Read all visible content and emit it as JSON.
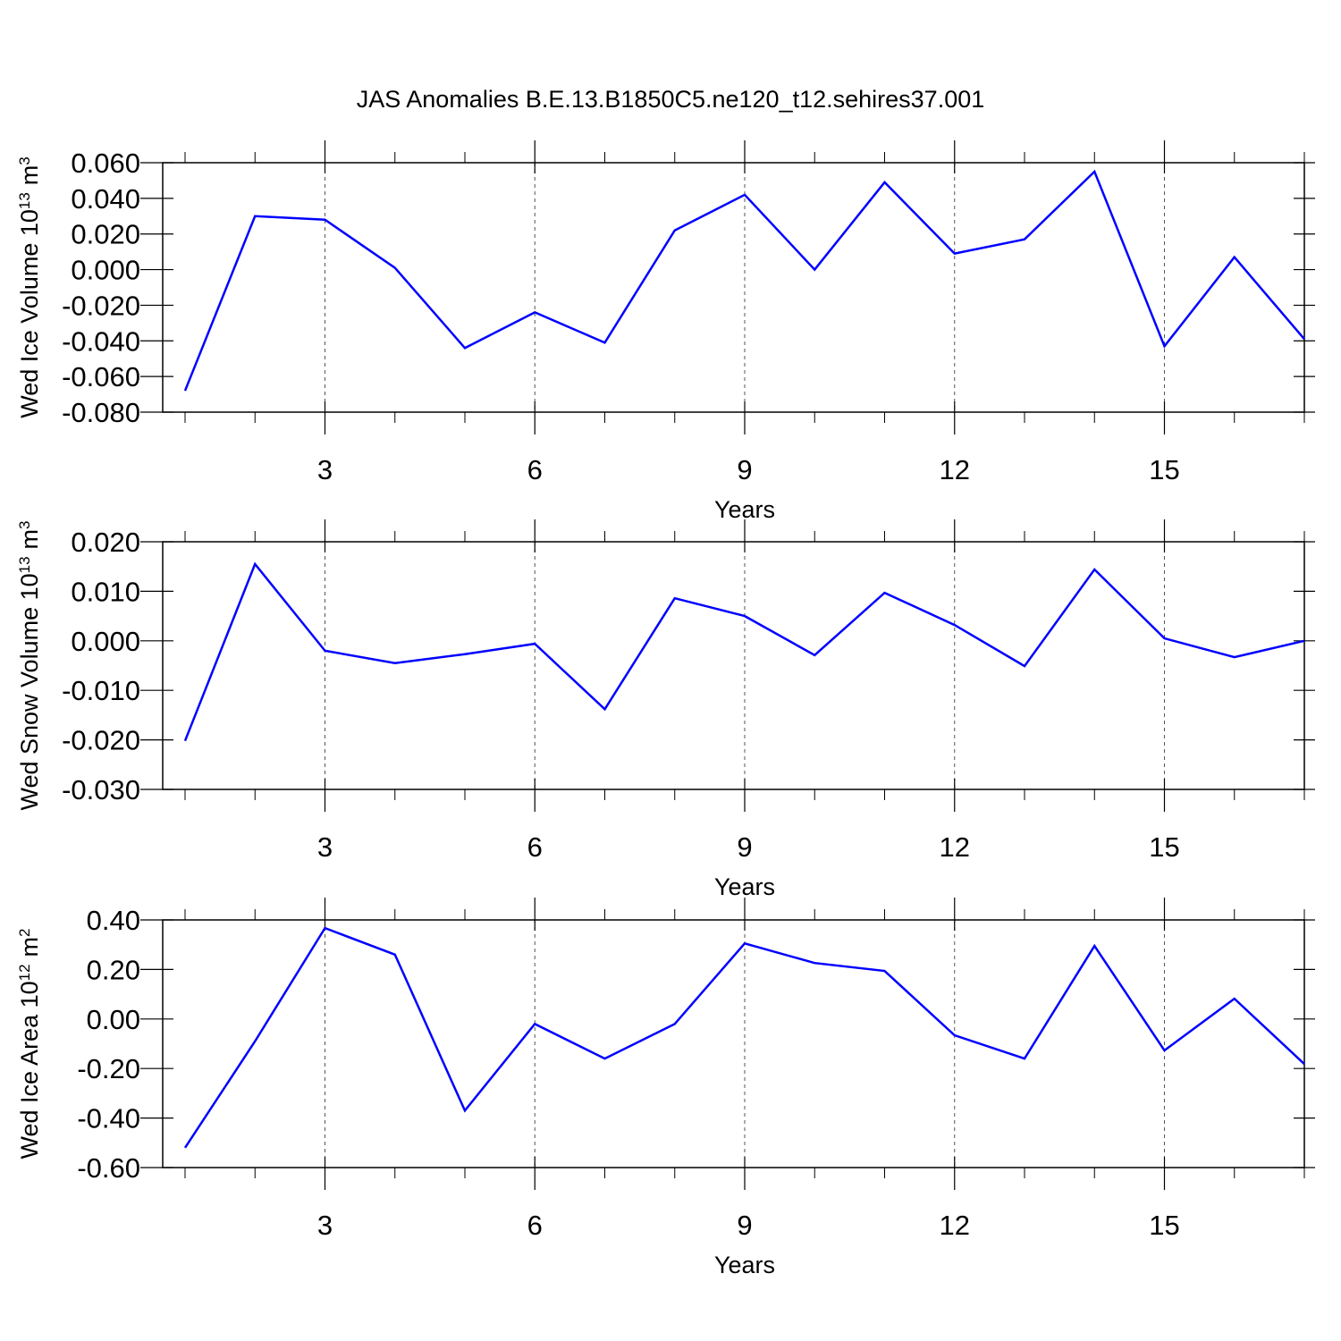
{
  "title": "JAS Anomalies B.E.13.B1850C5.ne120_t12.sehires37.001",
  "chart_data": [
    {
      "type": "line",
      "ylabel": [
        "Wed Ice Volume 10",
        "13",
        "m",
        "3"
      ],
      "xlabel": "Years",
      "x": [
        1,
        2,
        3,
        4,
        5,
        6,
        7,
        8,
        9,
        10,
        11,
        12,
        13,
        14,
        15,
        16,
        17
      ],
      "series": [
        {
          "color": "#0000ff",
          "values": [
            -0.068,
            0.03,
            0.028,
            0.001,
            -0.044,
            -0.024,
            -0.041,
            0.022,
            0.042,
            0.0,
            0.049,
            0.009,
            0.017,
            0.055,
            -0.043,
            0.007,
            -0.039
          ]
        }
      ],
      "xlim": [
        1,
        17
      ],
      "xticks": [
        3,
        6,
        9,
        12,
        15
      ],
      "xminorticks": [
        1,
        2,
        4,
        5,
        7,
        8,
        10,
        11,
        13,
        14,
        16,
        17
      ],
      "ylim": [
        -0.08,
        0.06
      ],
      "yticks": [
        {
          "value": -0.08,
          "label": "-0.080"
        },
        {
          "value": -0.06,
          "label": "-0.060"
        },
        {
          "value": -0.04,
          "label": "-0.040"
        },
        {
          "value": -0.02,
          "label": "-0.020"
        },
        {
          "value": 0,
          "label": "0.000"
        },
        {
          "value": 0.02,
          "label": "0.020"
        },
        {
          "value": 0.04,
          "label": "0.040"
        },
        {
          "value": 0.06,
          "label": "0.060"
        }
      ],
      "grid": "x"
    },
    {
      "type": "line",
      "ylabel": [
        "Wed Snow Volume 10",
        "13",
        "m",
        "3"
      ],
      "xlabel": "Years",
      "x": [
        1,
        2,
        3,
        4,
        5,
        6,
        7,
        8,
        9,
        10,
        11,
        12,
        13,
        14,
        15,
        16,
        17
      ],
      "series": [
        {
          "color": "#0000ff",
          "values": [
            -0.0202,
            0.0155,
            -0.002,
            -0.0045,
            -0.0027,
            -0.0006,
            -0.0138,
            0.0086,
            0.005,
            -0.0029,
            0.0097,
            0.0032,
            -0.0051,
            0.0144,
            0.0005,
            -0.0033,
            0.0
          ]
        }
      ],
      "xlim": [
        1,
        17
      ],
      "xticks": [
        3,
        6,
        9,
        12,
        15
      ],
      "xminorticks": [
        1,
        2,
        4,
        5,
        7,
        8,
        10,
        11,
        13,
        14,
        16,
        17
      ],
      "ylim": [
        -0.03,
        0.02
      ],
      "yticks": [
        {
          "value": -0.03,
          "label": "-0.030"
        },
        {
          "value": -0.02,
          "label": "-0.020"
        },
        {
          "value": -0.01,
          "label": "-0.010"
        },
        {
          "value": 0,
          "label": "0.000"
        },
        {
          "value": 0.01,
          "label": "0.010"
        },
        {
          "value": 0.02,
          "label": "0.020"
        }
      ],
      "grid": "x"
    },
    {
      "type": "line",
      "ylabel": [
        "Wed Ice Area 10",
        "12",
        "m",
        "2"
      ],
      "xlabel": "Years",
      "x": [
        1,
        2,
        3,
        4,
        5,
        6,
        7,
        8,
        9,
        10,
        11,
        12,
        13,
        14,
        15,
        16,
        17
      ],
      "series": [
        {
          "color": "#0000ff",
          "values": [
            -0.52,
            -0.09,
            0.367,
            0.26,
            -0.37,
            -0.02,
            -0.16,
            -0.02,
            0.305,
            0.226,
            0.194,
            -0.066,
            -0.16,
            0.295,
            -0.127,
            0.082,
            -0.182
          ]
        }
      ],
      "xlim": [
        1,
        17
      ],
      "xticks": [
        3,
        6,
        9,
        12,
        15
      ],
      "xminorticks": [
        1,
        2,
        4,
        5,
        7,
        8,
        10,
        11,
        13,
        14,
        16,
        17
      ],
      "ylim": [
        -0.6,
        0.4
      ],
      "yticks": [
        {
          "value": -0.6,
          "label": "-0.60"
        },
        {
          "value": -0.4,
          "label": "-0.40"
        },
        {
          "value": -0.2,
          "label": "-0.20"
        },
        {
          "value": 0,
          "label": "0.00"
        },
        {
          "value": 0.2,
          "label": "0.20"
        },
        {
          "value": 0.4,
          "label": "0.40"
        }
      ],
      "grid": "x"
    }
  ]
}
